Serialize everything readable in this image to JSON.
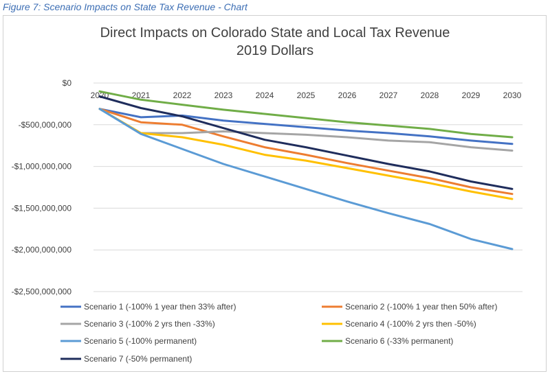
{
  "caption": "Figure 7: Scenario Impacts on State Tax Revenue - Chart",
  "chart_data": {
    "type": "line",
    "title": "Direct Impacts on Colorado State and Local Tax Revenue",
    "subtitle": "2019 Dollars",
    "xlabel": "",
    "ylabel": "",
    "x": [
      2020,
      2021,
      2022,
      2023,
      2024,
      2025,
      2026,
      2027,
      2028,
      2029,
      2030
    ],
    "x_tick_labels": [
      "2020",
      "2021",
      "2022",
      "2023",
      "2024",
      "2025",
      "2026",
      "2027",
      "2028",
      "2029",
      "2030"
    ],
    "ylim": [
      -2500000000,
      0
    ],
    "y_ticks": [
      0,
      -500000000,
      -1000000000,
      -1500000000,
      -2000000000,
      -2500000000
    ],
    "y_tick_labels": [
      "$0",
      "-$500,000,000",
      "-$1,000,000,000",
      "-$1,500,000,000",
      "-$2,000,000,000",
      "-$2,500,000,000"
    ],
    "grid": "horizontal",
    "legend_position": "bottom",
    "series": [
      {
        "name": "Scenario 1 (-100% 1 year then 33% after)",
        "color": "#4472c4",
        "values": [
          -310000000,
          -410000000,
          -390000000,
          -450000000,
          -490000000,
          -530000000,
          -570000000,
          -600000000,
          -640000000,
          -690000000,
          -730000000
        ]
      },
      {
        "name": "Scenario 2 (-100% 1 year then 50% after)",
        "color": "#ed7d31",
        "values": [
          -310000000,
          -470000000,
          -500000000,
          -640000000,
          -770000000,
          -860000000,
          -960000000,
          -1050000000,
          -1140000000,
          -1250000000,
          -1330000000
        ]
      },
      {
        "name": "Scenario 3 (-100% 2 yrs then -33%)",
        "color": "#a5a5a5",
        "values": [
          -310000000,
          -600000000,
          -600000000,
          -580000000,
          -600000000,
          -620000000,
          -650000000,
          -690000000,
          -710000000,
          -770000000,
          -810000000
        ]
      },
      {
        "name": "Scenario 4 (-100% 2 yrs then -50%)",
        "color": "#ffc000",
        "values": [
          -310000000,
          -600000000,
          -650000000,
          -740000000,
          -860000000,
          -930000000,
          -1020000000,
          -1110000000,
          -1200000000,
          -1300000000,
          -1390000000
        ]
      },
      {
        "name": "Scenario 5 (-100% permanent)",
        "color": "#5b9bd5",
        "values": [
          -310000000,
          -610000000,
          -790000000,
          -970000000,
          -1120000000,
          -1270000000,
          -1420000000,
          -1560000000,
          -1690000000,
          -1870000000,
          -1990000000
        ]
      },
      {
        "name": "Scenario 6 (-33% permanent)",
        "color": "#70ad47",
        "values": [
          -100000000,
          -200000000,
          -260000000,
          -320000000,
          -370000000,
          -420000000,
          -470000000,
          -510000000,
          -550000000,
          -610000000,
          -650000000
        ]
      },
      {
        "name": "Scenario 7 (-50% permanent)",
        "color": "#1f2d5c",
        "values": [
          -160000000,
          -300000000,
          -400000000,
          -540000000,
          -680000000,
          -770000000,
          -870000000,
          -970000000,
          -1060000000,
          -1180000000,
          -1270000000
        ]
      }
    ]
  }
}
